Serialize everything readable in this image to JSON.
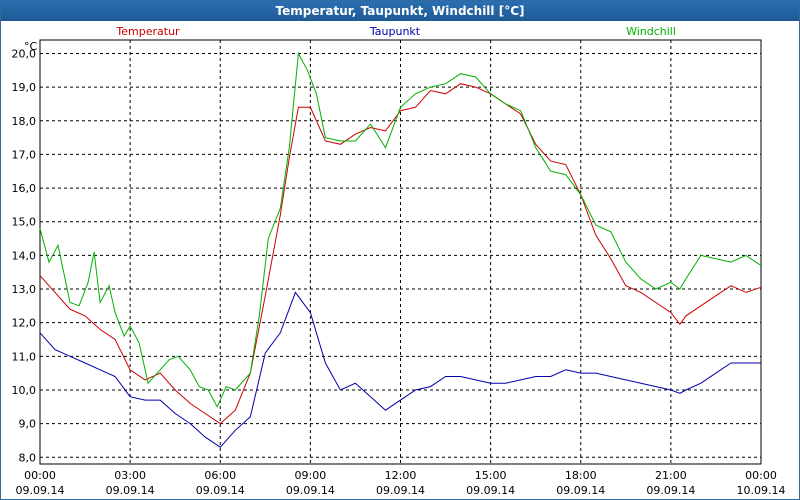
{
  "chart_data": {
    "type": "line",
    "title": "Temperatur, Taupunkt, Windchill [°C]",
    "ylabel": "°C",
    "ylim": [
      7.8,
      20.4
    ],
    "yticks": [
      "8,0",
      "9,0",
      "10,0",
      "11,0",
      "12,0",
      "13,0",
      "14,0",
      "15,0",
      "16,0",
      "17,0",
      "18,0",
      "19,0",
      "20,0"
    ],
    "xlim": [
      0,
      24
    ],
    "xticks": [
      {
        "time": "00:00",
        "date": "09.09.14"
      },
      {
        "time": "03:00",
        "date": "09.09.14"
      },
      {
        "time": "06:00",
        "date": "09.09.14"
      },
      {
        "time": "09:00",
        "date": "09.09.14"
      },
      {
        "time": "12:00",
        "date": "09.09.14"
      },
      {
        "time": "15:00",
        "date": "09.09.14"
      },
      {
        "time": "18:00",
        "date": "09.09.14"
      },
      {
        "time": "21:00",
        "date": "09.09.14"
      },
      {
        "time": "00:00",
        "date": "10.09.14"
      }
    ],
    "grid": true,
    "series": [
      {
        "name": "Temperatur",
        "color": "#cc0000",
        "points": [
          [
            0,
            13.4
          ],
          [
            0.5,
            12.9
          ],
          [
            1,
            12.4
          ],
          [
            1.5,
            12.2
          ],
          [
            2,
            11.8
          ],
          [
            2.5,
            11.5
          ],
          [
            3,
            10.6
          ],
          [
            3.5,
            10.3
          ],
          [
            4,
            10.5
          ],
          [
            4.5,
            10.0
          ],
          [
            5,
            9.6
          ],
          [
            5.5,
            9.3
          ],
          [
            6,
            9.0
          ],
          [
            6.5,
            9.4
          ],
          [
            7,
            10.5
          ],
          [
            7.5,
            12.8
          ],
          [
            8,
            15.2
          ],
          [
            8.3,
            16.9
          ],
          [
            8.6,
            18.4
          ],
          [
            9,
            18.4
          ],
          [
            9.5,
            17.4
          ],
          [
            10,
            17.3
          ],
          [
            10.5,
            17.6
          ],
          [
            11,
            17.8
          ],
          [
            11.5,
            17.7
          ],
          [
            12,
            18.3
          ],
          [
            12.5,
            18.4
          ],
          [
            13,
            18.9
          ],
          [
            13.5,
            18.8
          ],
          [
            14,
            19.1
          ],
          [
            14.5,
            19.0
          ],
          [
            15,
            18.8
          ],
          [
            15.5,
            18.5
          ],
          [
            16,
            18.2
          ],
          [
            16.5,
            17.3
          ],
          [
            17,
            16.8
          ],
          [
            17.5,
            16.7
          ],
          [
            18,
            15.8
          ],
          [
            18.5,
            14.6
          ],
          [
            19,
            13.9
          ],
          [
            19.5,
            13.1
          ],
          [
            20,
            12.9
          ],
          [
            20.5,
            12.6
          ],
          [
            21,
            12.3
          ],
          [
            21.3,
            11.95
          ],
          [
            21.5,
            12.2
          ],
          [
            22,
            12.5
          ],
          [
            22.5,
            12.8
          ],
          [
            23,
            13.1
          ],
          [
            23.5,
            12.9
          ],
          [
            24,
            13.05
          ]
        ]
      },
      {
        "name": "Taupunkt",
        "color": "#0000aa",
        "points": [
          [
            0,
            11.7
          ],
          [
            0.5,
            11.2
          ],
          [
            1,
            11.0
          ],
          [
            1.5,
            10.8
          ],
          [
            2,
            10.6
          ],
          [
            2.5,
            10.4
          ],
          [
            3,
            9.8
          ],
          [
            3.5,
            9.7
          ],
          [
            4,
            9.7
          ],
          [
            4.5,
            9.3
          ],
          [
            5,
            9.0
          ],
          [
            5.5,
            8.6
          ],
          [
            6,
            8.3
          ],
          [
            6.5,
            8.8
          ],
          [
            7,
            9.2
          ],
          [
            7.5,
            11.1
          ],
          [
            8,
            11.7
          ],
          [
            8.5,
            12.9
          ],
          [
            9,
            12.3
          ],
          [
            9.5,
            10.8
          ],
          [
            10,
            10.0
          ],
          [
            10.5,
            10.2
          ],
          [
            11,
            9.8
          ],
          [
            11.5,
            9.4
          ],
          [
            12,
            9.7
          ],
          [
            12.5,
            10.0
          ],
          [
            13,
            10.1
          ],
          [
            13.5,
            10.4
          ],
          [
            14,
            10.4
          ],
          [
            14.5,
            10.3
          ],
          [
            15,
            10.2
          ],
          [
            15.5,
            10.2
          ],
          [
            16,
            10.3
          ],
          [
            16.5,
            10.4
          ],
          [
            17,
            10.4
          ],
          [
            17.5,
            10.6
          ],
          [
            18,
            10.5
          ],
          [
            18.5,
            10.5
          ],
          [
            19,
            10.4
          ],
          [
            19.5,
            10.3
          ],
          [
            20,
            10.2
          ],
          [
            20.5,
            10.1
          ],
          [
            21,
            10.0
          ],
          [
            21.3,
            9.9
          ],
          [
            21.5,
            10.0
          ],
          [
            22,
            10.2
          ],
          [
            22.5,
            10.5
          ],
          [
            23,
            10.8
          ],
          [
            23.5,
            10.8
          ],
          [
            24,
            10.8
          ]
        ]
      },
      {
        "name": "Windchill",
        "color": "#00b000",
        "points": [
          [
            0,
            14.8
          ],
          [
            0.3,
            13.8
          ],
          [
            0.6,
            14.3
          ],
          [
            1,
            12.6
          ],
          [
            1.3,
            12.5
          ],
          [
            1.6,
            13.2
          ],
          [
            1.8,
            14.1
          ],
          [
            2,
            12.6
          ],
          [
            2.3,
            13.1
          ],
          [
            2.5,
            12.3
          ],
          [
            2.8,
            11.6
          ],
          [
            3,
            11.9
          ],
          [
            3.3,
            11.4
          ],
          [
            3.6,
            10.2
          ],
          [
            4,
            10.6
          ],
          [
            4.3,
            10.9
          ],
          [
            4.6,
            11.0
          ],
          [
            5,
            10.6
          ],
          [
            5.3,
            10.1
          ],
          [
            5.6,
            10.0
          ],
          [
            5.9,
            9.5
          ],
          [
            6.2,
            10.1
          ],
          [
            6.5,
            10.0
          ],
          [
            7,
            10.5
          ],
          [
            7.3,
            12.2
          ],
          [
            7.6,
            14.5
          ],
          [
            8,
            15.4
          ],
          [
            8.3,
            17.2
          ],
          [
            8.6,
            20.0
          ],
          [
            8.9,
            19.5
          ],
          [
            9.2,
            18.8
          ],
          [
            9.5,
            17.5
          ],
          [
            10,
            17.4
          ],
          [
            10.5,
            17.4
          ],
          [
            11,
            17.9
          ],
          [
            11.5,
            17.2
          ],
          [
            12,
            18.4
          ],
          [
            12.5,
            18.8
          ],
          [
            13,
            19.0
          ],
          [
            13.5,
            19.1
          ],
          [
            14,
            19.4
          ],
          [
            14.5,
            19.3
          ],
          [
            15,
            18.8
          ],
          [
            15.5,
            18.5
          ],
          [
            16,
            18.3
          ],
          [
            16.5,
            17.2
          ],
          [
            17,
            16.5
          ],
          [
            17.5,
            16.4
          ],
          [
            18,
            15.8
          ],
          [
            18.5,
            14.9
          ],
          [
            19,
            14.7
          ],
          [
            19.5,
            13.8
          ],
          [
            20,
            13.3
          ],
          [
            20.5,
            13.0
          ],
          [
            21,
            13.2
          ],
          [
            21.3,
            13.0
          ],
          [
            21.5,
            13.3
          ],
          [
            22,
            14.0
          ],
          [
            22.5,
            13.9
          ],
          [
            23,
            13.8
          ],
          [
            23.5,
            14.0
          ],
          [
            24,
            13.7
          ]
        ]
      }
    ]
  }
}
